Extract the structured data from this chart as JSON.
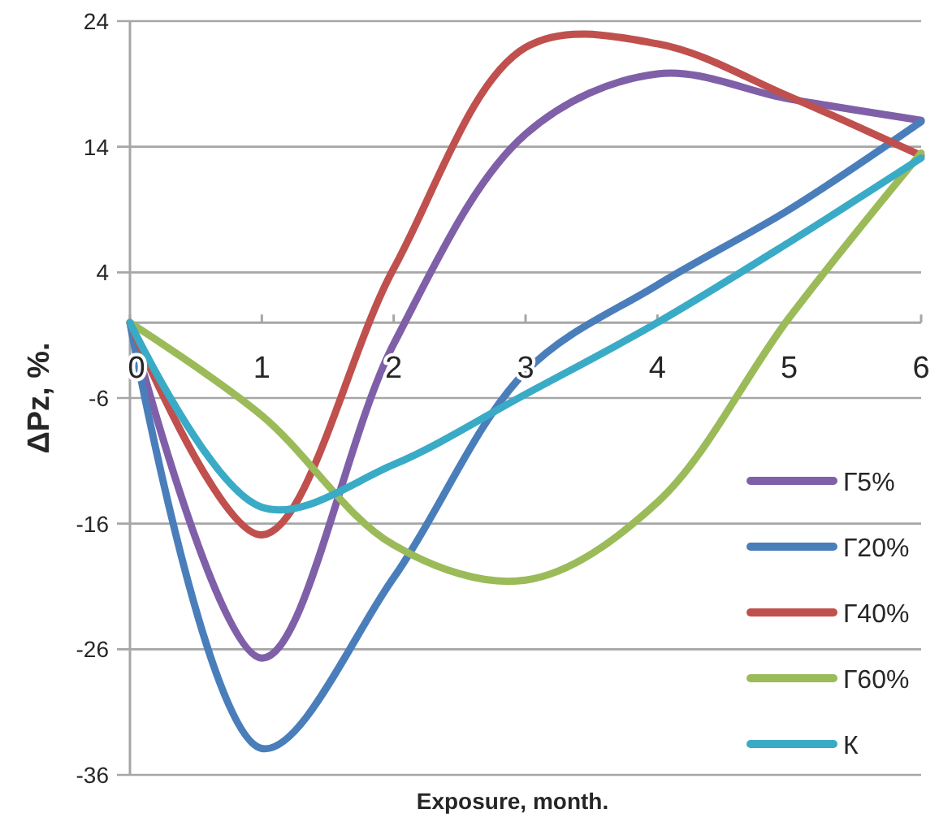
{
  "chart_data": {
    "type": "line",
    "xlabel": "Exposure, month.",
    "ylabel": "ΔPz, %.",
    "x": [
      0,
      1,
      2,
      3,
      4,
      5,
      6
    ],
    "xlim": [
      0,
      6
    ],
    "xticks": [
      0,
      1,
      2,
      3,
      4,
      5,
      6
    ],
    "ylim": [
      -36,
      24
    ],
    "yticks": [
      -36,
      -26,
      -16,
      -6,
      4,
      14,
      24
    ],
    "grid": "y",
    "legend": "right",
    "marker": "none",
    "line_style": "solid",
    "series": [
      {
        "name": "Г5%",
        "color": "#7f60a8",
        "values": [
          0,
          -26.7,
          -1.7,
          15,
          19.8,
          17.8,
          16.1
        ]
      },
      {
        "name": "Г20%",
        "color": "#4a7ebb",
        "values": [
          0,
          -33.9,
          -20.3,
          -3.9,
          3,
          9,
          16
        ]
      },
      {
        "name": "Г40%",
        "color": "#c0504d",
        "values": [
          0,
          -16.9,
          4.3,
          21.9,
          22.2,
          18,
          13.3
        ]
      },
      {
        "name": "Г60%",
        "color": "#9bbb59",
        "values": [
          0,
          -7.4,
          -17.7,
          -20.5,
          -14.3,
          0.4,
          13.5
        ]
      },
      {
        "name": "К",
        "color": "#3aabc6",
        "values": [
          0,
          -14.7,
          -11.3,
          -5.7,
          0,
          6.4,
          13.1
        ]
      }
    ]
  }
}
